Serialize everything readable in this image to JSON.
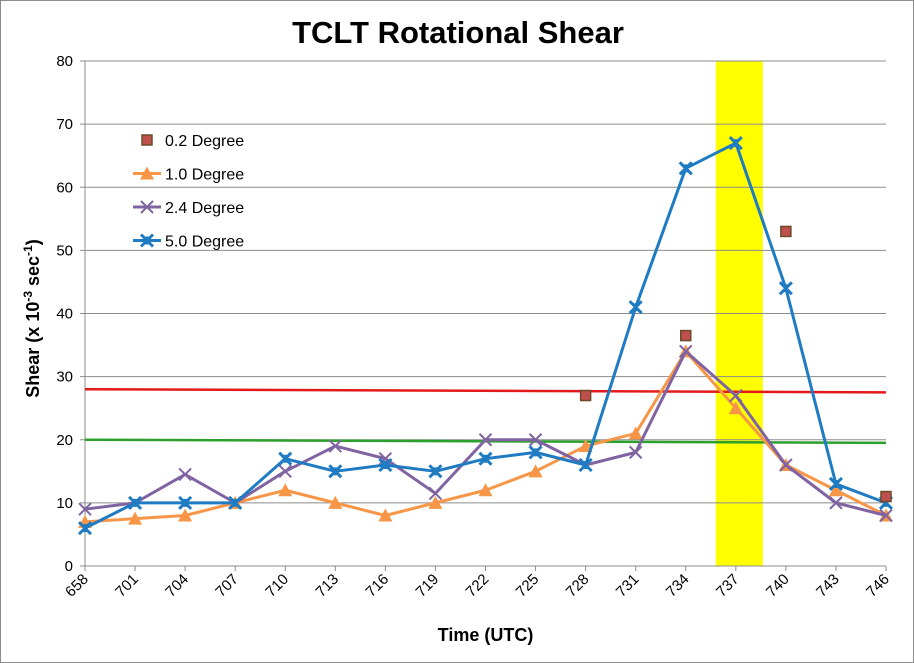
{
  "chart_data": {
    "type": "line",
    "title": "TCLT Rotational Shear",
    "xlabel": "Time (UTC)",
    "ylabel_main": "Shear (x 10",
    "ylabel_exp1": "-3",
    "ylabel_mid": " sec",
    "ylabel_exp2": "-1",
    "ylabel_end": ")",
    "ylim": [
      0,
      80
    ],
    "yticks": [
      0,
      10,
      20,
      30,
      40,
      50,
      60,
      70,
      80
    ],
    "grid": true,
    "legend_position": "top-left",
    "categories": [
      "658",
      "701",
      "704",
      "707",
      "710",
      "713",
      "716",
      "719",
      "722",
      "725",
      "728",
      "731",
      "734",
      "737",
      "740",
      "743",
      "746"
    ],
    "series": [
      {
        "name": "0.2 Degree",
        "color": "#c0504d",
        "marker": "square",
        "line": false,
        "values": [
          null,
          null,
          null,
          null,
          null,
          null,
          null,
          null,
          null,
          null,
          27,
          null,
          36.5,
          null,
          53,
          null,
          11
        ]
      },
      {
        "name": "1.0 Degree",
        "color": "#f79646",
        "marker": "triangle",
        "line": true,
        "values": [
          7,
          7.5,
          8,
          10,
          12,
          10,
          8,
          10,
          12,
          15,
          19,
          21,
          34,
          25,
          16,
          12,
          8
        ]
      },
      {
        "name": "2.4 Degree",
        "color": "#8064a2",
        "marker": "x",
        "line": true,
        "values": [
          9,
          10,
          14.5,
          10,
          15,
          19,
          17,
          11.5,
          20,
          20,
          16,
          18,
          34,
          27,
          16,
          10,
          8
        ]
      },
      {
        "name": "5.0 Degree",
        "color": "#1f7bc2",
        "marker": "star",
        "line": true,
        "values": [
          6,
          10,
          10,
          10,
          17,
          15,
          16,
          15,
          17,
          18,
          16,
          41,
          63,
          67,
          44,
          13,
          10
        ]
      }
    ],
    "reference_lines": [
      {
        "color": "#e31a1c",
        "y_start": 28,
        "y_end": 27.5
      },
      {
        "color": "#2ca02c",
        "y_start": 20,
        "y_end": 19.5
      }
    ],
    "highlight_band": {
      "x_from": "734",
      "x_to": "740",
      "color": "#ffff00"
    }
  }
}
